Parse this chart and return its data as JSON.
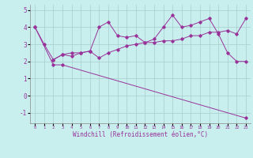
{
  "xlabel": "Windchill (Refroidissement éolien,°C)",
  "line1_x": [
    0,
    1,
    2,
    3,
    4,
    5,
    6,
    7,
    8,
    9,
    10,
    11,
    12,
    13,
    14,
    15,
    16,
    17,
    18,
    19,
    20,
    21,
    22,
    23
  ],
  "line1_y": [
    4.0,
    3.0,
    2.1,
    2.4,
    2.5,
    2.5,
    2.6,
    4.0,
    4.3,
    3.5,
    3.4,
    3.5,
    3.1,
    3.3,
    4.0,
    4.7,
    4.0,
    4.1,
    4.3,
    4.5,
    3.6,
    2.5,
    2.0,
    2.0
  ],
  "line2_x": [
    2,
    3,
    4,
    5,
    6,
    7,
    8,
    9,
    10,
    11,
    12,
    13,
    14,
    15,
    16,
    17,
    18,
    19,
    20,
    21,
    22,
    23
  ],
  "line2_y": [
    2.1,
    2.4,
    2.3,
    2.5,
    2.6,
    2.2,
    2.5,
    2.7,
    2.9,
    3.0,
    3.1,
    3.1,
    3.2,
    3.2,
    3.3,
    3.5,
    3.5,
    3.7,
    3.7,
    3.8,
    3.6,
    4.5
  ],
  "line3_x": [
    0,
    2,
    3,
    23
  ],
  "line3_y": [
    4.0,
    1.8,
    1.8,
    -1.3
  ],
  "color": "#993399",
  "bg_color": "#c8eeee",
  "grid_color": "#a8cccc",
  "ylim": [
    -1.6,
    5.3
  ],
  "xlim": [
    -0.5,
    23.5
  ],
  "yticks": [
    -1,
    0,
    1,
    2,
    3,
    4,
    5
  ],
  "xticks": [
    0,
    1,
    2,
    3,
    4,
    5,
    6,
    7,
    8,
    9,
    10,
    11,
    12,
    13,
    14,
    15,
    16,
    17,
    18,
    19,
    20,
    21,
    22,
    23
  ]
}
